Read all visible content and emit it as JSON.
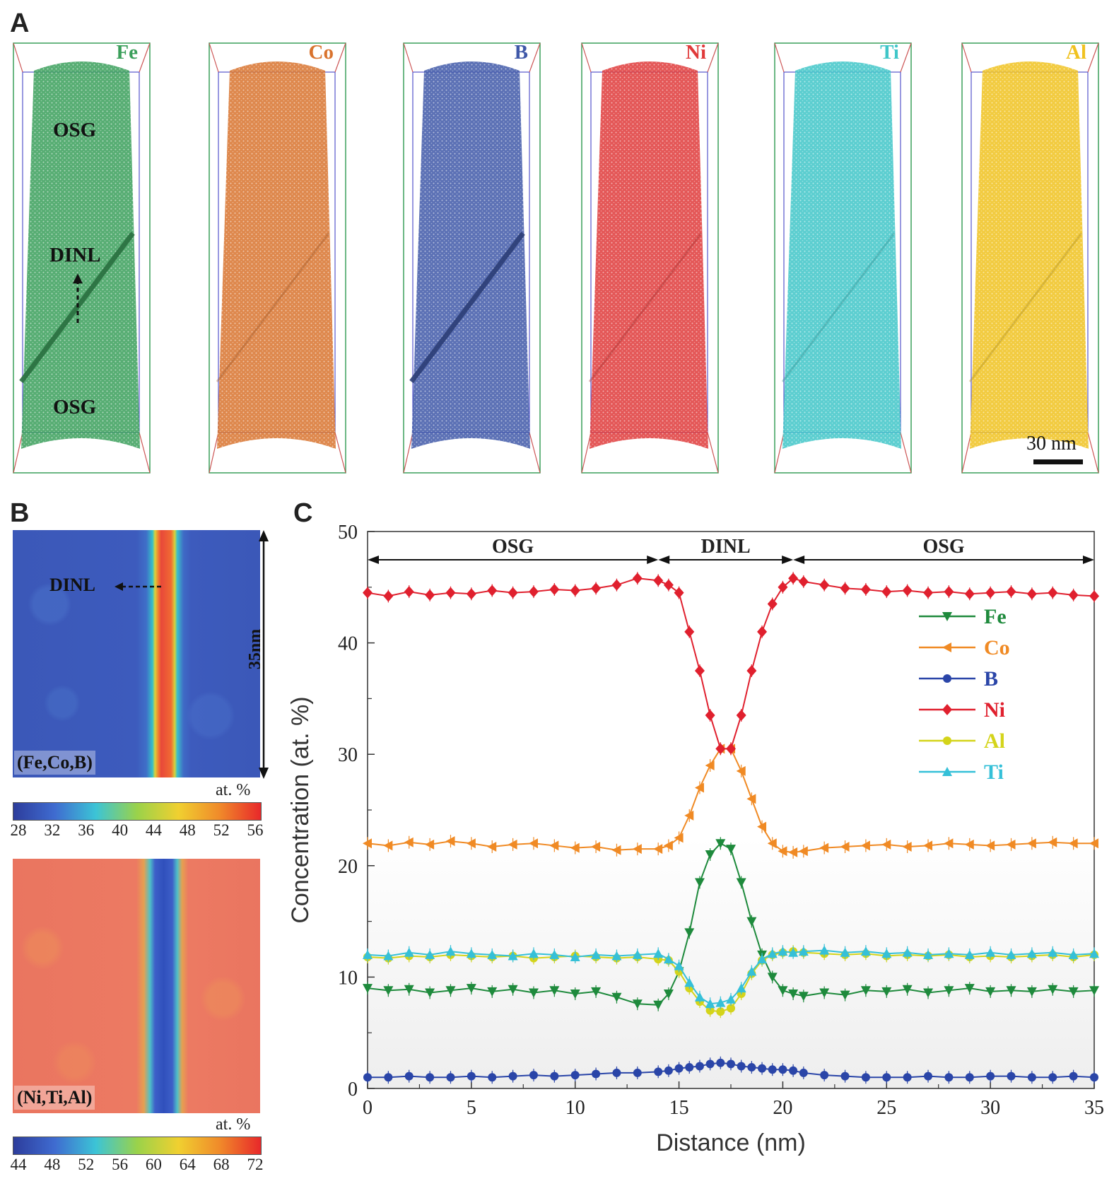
{
  "panels": {
    "a": {
      "letter": "A"
    },
    "b": {
      "letter": "B"
    },
    "c": {
      "letter": "C"
    }
  },
  "panel_a": {
    "tips": [
      {
        "element": "Fe",
        "color": "#3a9f5a"
      },
      {
        "element": "Co",
        "color": "#d9732e"
      },
      {
        "element": "B",
        "color": "#3f58a8"
      },
      {
        "element": "Ni",
        "color": "#e03a3a"
      },
      {
        "element": "Ti",
        "color": "#3fc6c8"
      },
      {
        "element": "Al",
        "color": "#f0c21f"
      }
    ],
    "region_top": "OSG",
    "region_middle": "DINL",
    "region_bottom": "OSG",
    "scale_bar": "30 nm"
  },
  "panel_b": {
    "maps": [
      {
        "label": "(Fe,Co,B)",
        "unit": "at. %",
        "ticks": [
          "28",
          "32",
          "36",
          "40",
          "44",
          "48",
          "52",
          "56"
        ]
      },
      {
        "label": "(Ni,Ti,Al)",
        "unit": "at. %",
        "ticks": [
          "44",
          "48",
          "52",
          "56",
          "60",
          "64",
          "68",
          "72"
        ]
      }
    ],
    "dinl_label": "DINL",
    "length_label": "35nm"
  },
  "chart_data": {
    "type": "line",
    "xlabel": "Distance (nm)",
    "ylabel": "Concentration (at. %)",
    "xlim": [
      0,
      35
    ],
    "ylim": [
      0,
      50
    ],
    "xticks": [
      0,
      5,
      10,
      15,
      20,
      25,
      30,
      35
    ],
    "yticks": [
      0,
      10,
      20,
      30,
      40,
      50
    ],
    "regions": [
      {
        "label": "OSG",
        "from": 0,
        "to": 14
      },
      {
        "label": "DINL",
        "from": 14,
        "to": 20.5
      },
      {
        "label": "OSG",
        "from": 20.5,
        "to": 35
      }
    ],
    "legend": "right",
    "x": [
      0,
      1,
      2,
      3,
      4,
      5,
      6,
      7,
      8,
      9,
      10,
      11,
      12,
      13,
      14,
      14.5,
      15,
      15.5,
      16,
      16.5,
      17,
      17.5,
      18,
      18.5,
      19,
      19.5,
      20,
      20.5,
      21,
      22,
      23,
      24,
      25,
      26,
      27,
      28,
      29,
      30,
      31,
      32,
      33,
      34,
      35
    ],
    "series": [
      {
        "name": "Fe",
        "color": "#1e8a3c",
        "marker": "triangle-down",
        "values": [
          9,
          8.8,
          8.9,
          8.6,
          8.8,
          9,
          8.7,
          8.9,
          8.6,
          8.8,
          8.5,
          8.7,
          8.2,
          7.6,
          7.5,
          8.5,
          10.5,
          14,
          18.5,
          21,
          22,
          21.5,
          18.5,
          15,
          12,
          10,
          8.8,
          8.5,
          8.3,
          8.6,
          8.4,
          8.8,
          8.7,
          8.9,
          8.6,
          8.8,
          9,
          8.7,
          8.8,
          8.7,
          8.9,
          8.7,
          8.8
        ]
      },
      {
        "name": "Co",
        "color": "#f08a24",
        "marker": "triangle-left",
        "values": [
          22,
          21.8,
          22.1,
          21.9,
          22.2,
          22,
          21.7,
          21.9,
          22,
          21.8,
          21.6,
          21.7,
          21.4,
          21.5,
          21.5,
          21.8,
          22.5,
          24.5,
          27,
          29,
          30.5,
          30.5,
          28.5,
          26,
          23.5,
          22,
          21.3,
          21.2,
          21.3,
          21.6,
          21.7,
          21.8,
          21.9,
          21.7,
          21.8,
          22,
          21.9,
          21.8,
          21.9,
          22,
          22.1,
          22,
          22
        ]
      },
      {
        "name": "B",
        "color": "#2a45a8",
        "marker": "circle",
        "values": [
          1,
          1,
          1.1,
          1,
          1,
          1.1,
          1,
          1.1,
          1.2,
          1.1,
          1.2,
          1.3,
          1.4,
          1.4,
          1.5,
          1.6,
          1.8,
          1.9,
          2,
          2.2,
          2.3,
          2.2,
          2,
          1.9,
          1.8,
          1.7,
          1.7,
          1.6,
          1.4,
          1.2,
          1.1,
          1,
          1,
          1,
          1.1,
          1,
          1,
          1.1,
          1.1,
          1,
          1,
          1.1,
          1
        ]
      },
      {
        "name": "Ni",
        "color": "#e0202e",
        "marker": "diamond",
        "values": [
          44.5,
          44.2,
          44.6,
          44.3,
          44.5,
          44.4,
          44.7,
          44.5,
          44.6,
          44.8,
          44.7,
          44.9,
          45.2,
          45.8,
          45.6,
          45.2,
          44.5,
          41,
          37.5,
          33.5,
          30.5,
          30.5,
          33.5,
          37.5,
          41,
          43.5,
          45,
          45.8,
          45.5,
          45.2,
          44.9,
          44.8,
          44.6,
          44.7,
          44.5,
          44.6,
          44.4,
          44.5,
          44.6,
          44.4,
          44.5,
          44.3,
          44.2
        ]
      },
      {
        "name": "Al",
        "color": "#d4d41a",
        "marker": "circle",
        "values": [
          11.8,
          11.7,
          11.9,
          11.8,
          12,
          11.9,
          11.8,
          11.9,
          11.7,
          11.8,
          11.9,
          11.8,
          11.7,
          11.8,
          11.6,
          11.5,
          10.5,
          9,
          7.8,
          7,
          6.9,
          7.2,
          8.5,
          10.3,
          11.5,
          12,
          12.2,
          12.3,
          12.2,
          12.1,
          12,
          12.1,
          11.9,
          12,
          11.9,
          12,
          11.8,
          11.9,
          11.8,
          11.9,
          12,
          11.8,
          12
        ]
      },
      {
        "name": "Ti",
        "color": "#35c0d8",
        "marker": "triangle-up",
        "values": [
          12,
          11.9,
          12.2,
          12,
          12.3,
          12.1,
          12,
          11.9,
          12.1,
          12,
          11.8,
          12,
          11.9,
          12,
          12.1,
          11.6,
          11,
          9.5,
          8.2,
          7.6,
          7.7,
          8,
          9,
          10.5,
          11.6,
          12.1,
          12.3,
          12.2,
          12.3,
          12.4,
          12.2,
          12.3,
          12.1,
          12.2,
          12,
          12.1,
          12,
          12.2,
          12,
          12.1,
          12.2,
          12,
          12.1
        ]
      }
    ]
  }
}
